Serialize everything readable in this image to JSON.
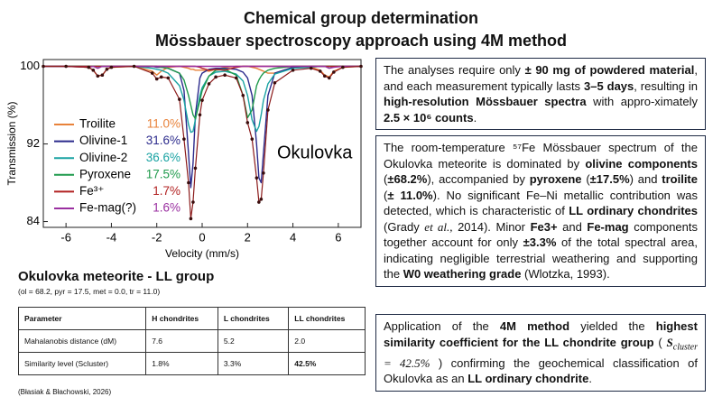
{
  "header": {
    "title_lines": [
      "Chemical group determination",
      "Mössbauer spectroscopy approach using 4M method"
    ]
  },
  "chart_data": {
    "type": "line",
    "x_label": "Velocity (mm/s)",
    "y_label": "Transmission (%)",
    "annotation": "Okulovka",
    "x": [
      -7,
      -6,
      -5,
      -4.8,
      -4.6,
      -4.4,
      -4.2,
      -4,
      -3,
      -2.2,
      -2,
      -1.8,
      -1.5,
      -1,
      -0.8,
      -0.6,
      -0.5,
      -0.4,
      -0.3,
      -0.1,
      0,
      0.3,
      0.6,
      1,
      1.5,
      1.8,
      2,
      2.2,
      2.4,
      2.5,
      2.6,
      2.7,
      2.9,
      3.2,
      4,
      4.8,
      5.2,
      5.4,
      5.6,
      5.8,
      6.2,
      7
    ],
    "xlim": [
      -7,
      7
    ],
    "xticks": [
      -6,
      -4,
      -2,
      0,
      2,
      4,
      6
    ],
    "ylim": [
      83.4,
      100.7
    ],
    "yticks": [
      84,
      92,
      100
    ],
    "measured": {
      "color": "#8b1a1a",
      "values": [
        100,
        100,
        99.9,
        99.6,
        99.0,
        99.1,
        99.7,
        99.9,
        100,
        99.3,
        98.7,
        98.9,
        98.8,
        96.6,
        92.5,
        88,
        84.3,
        86,
        89.5,
        95,
        96.5,
        98.2,
        98.9,
        99.1,
        98.8,
        97,
        94.2,
        92.5,
        88.5,
        86,
        86.3,
        89,
        95.5,
        98.3,
        99.6,
        99.8,
        99.5,
        99.0,
        98.8,
        99.4,
        99.9,
        100
      ]
    },
    "series": [
      {
        "name": "Troilite",
        "color": "#e8823a",
        "share": {
          "value": 11.0,
          "label": "11.0%"
        },
        "values": [
          100,
          100,
          99.9,
          99.6,
          99.0,
          99.1,
          99.7,
          99.9,
          100,
          99.5,
          99.1,
          99.5,
          99.9,
          100,
          99.9,
          99.8,
          99.7,
          99.7,
          99.6,
          99.6,
          99.6,
          99.5,
          99.7,
          99.9,
          100,
          100,
          100,
          99.9,
          99.8,
          99.7,
          99.6,
          99.5,
          99.3,
          99.3,
          99.9,
          99.9,
          99.6,
          99.1,
          98.9,
          99.5,
          99.9,
          100
        ]
      },
      {
        "name": "Olivine-1",
        "color": "#2b2a8c",
        "share": {
          "value": 31.6,
          "label": "31.6%"
        },
        "values": [
          100,
          100,
          100,
          100,
          100,
          100,
          100,
          100,
          100,
          100,
          99.9,
          99.9,
          99.8,
          99.3,
          97.5,
          91,
          87.5,
          90,
          95,
          98.8,
          99.3,
          99.7,
          99.8,
          99.8,
          99.7,
          99.4,
          98.8,
          97,
          92,
          88.5,
          88,
          91,
          97,
          99.3,
          99.9,
          100,
          100,
          100,
          100,
          100,
          100,
          100
        ]
      },
      {
        "name": "Olivine-2",
        "color": "#1aa3a3",
        "share": {
          "value": 36.6,
          "label": "36.6%"
        },
        "values": [
          100,
          100,
          100,
          100,
          100,
          100,
          100,
          100,
          100,
          99.8,
          99.7,
          99.6,
          99.3,
          98,
          96.5,
          94,
          93.2,
          93.3,
          94.5,
          97,
          97.8,
          99,
          99.4,
          99.5,
          99.2,
          98.5,
          97,
          94.5,
          93.3,
          93.8,
          95,
          96.5,
          98.2,
          99.2,
          99.8,
          99.9,
          100,
          100,
          100,
          100,
          100,
          100
        ]
      },
      {
        "name": "Pyroxene",
        "color": "#1f9a4c",
        "share": {
          "value": 17.5,
          "label": "17.5%"
        },
        "values": [
          100,
          100,
          100,
          100,
          100,
          100,
          100,
          100,
          100,
          100,
          100,
          99.9,
          99.8,
          99.3,
          98.6,
          97,
          96,
          95,
          94.6,
          96.5,
          97.5,
          99,
          99.6,
          99.7,
          99.1,
          97,
          94.7,
          95.5,
          98,
          98.6,
          99,
          99.3,
          99.6,
          99.8,
          100,
          100,
          100,
          100,
          100,
          100,
          100,
          100
        ]
      },
      {
        "name": "Fe³⁺",
        "color": "#b22222",
        "share": {
          "value": 1.7,
          "label": "1.7%"
        },
        "values": [
          100,
          100,
          100,
          100,
          100,
          100,
          100,
          100,
          100,
          100,
          100,
          100,
          100,
          100,
          100,
          100,
          100,
          100,
          100,
          99.9,
          99.8,
          99.6,
          99.7,
          99.6,
          99.9,
          100,
          100,
          100,
          100,
          100,
          100,
          100,
          100,
          100,
          100,
          100,
          100,
          100,
          100,
          100,
          100,
          100
        ]
      },
      {
        "name": "Fe-mag(?)",
        "color": "#9a2fa0",
        "share": {
          "value": 1.6,
          "label": "1.6%"
        },
        "values": [
          100,
          100,
          99.9,
          100,
          99.8,
          100,
          100,
          100,
          100,
          100,
          100,
          100,
          100,
          100,
          100,
          100,
          100,
          100,
          100,
          100,
          100,
          100,
          100,
          100,
          100,
          100,
          100,
          100,
          100,
          100,
          100,
          100,
          100,
          100,
          100,
          100,
          100,
          100,
          99.8,
          99.9,
          100,
          100
        ]
      }
    ]
  },
  "summary": {
    "title": "Okulovka meteorite - LL group",
    "subtitle": "(ol = 68.2, pyr = 17.5, met = 0.0, tr = 11.0)"
  },
  "table": {
    "header": [
      "Parameter",
      "H chondrites",
      "L chondrites",
      "LL chondrites"
    ],
    "rows": [
      [
        "Mahalanobis distance (dM)",
        "7.6",
        "5.2",
        "2.0"
      ],
      [
        "Similarity level (Scluster)",
        "1.8%",
        "3.3%",
        {
          "text": "42.5%",
          "bold": true
        }
      ]
    ]
  },
  "footnote": "(Błasiak & Błachowski, 2026)",
  "panels": [
    [
      {
        "text": "The analyses require only "
      },
      {
        "text": "± 90 mg of powdered material",
        "bold": true
      },
      {
        "text": ", and each measurement typically lasts "
      },
      {
        "text": "3–5 days",
        "bold": true
      },
      {
        "text": ", resulting in "
      },
      {
        "text": "high-resolution Mössbauer spectra",
        "bold": true
      },
      {
        "text": " with appro-ximately "
      },
      {
        "text": "2.5 × 10⁶ counts",
        "bold": true
      },
      {
        "text": "."
      }
    ],
    [
      {
        "text": "The room-temperature ⁵⁷Fe Mössbauer spectrum of the Okulovka meteorite is dominated by "
      },
      {
        "text": "olivine components",
        "bold": true
      },
      {
        "text": " ("
      },
      {
        "text": "±68.2%",
        "bold": true
      },
      {
        "text": "), accompanied by "
      },
      {
        "text": "pyroxene",
        "bold": true
      },
      {
        "text": " ("
      },
      {
        "text": "±17.5%",
        "bold": true
      },
      {
        "text": ") and "
      },
      {
        "text": "troilite",
        "bold": true
      },
      {
        "text": " ("
      },
      {
        "text": "± 11.0%",
        "bold": true
      },
      {
        "text": "). No significant Fe–Ni metallic contribution was detected, which is characteristic of "
      },
      {
        "text": "LL ordinary chondrites",
        "bold": true
      },
      {
        "text": " (Grady "
      },
      {
        "text": "et al.,",
        "italic": true
      },
      {
        "text": " 2014). Minor "
      },
      {
        "text": "Fe3+",
        "bold": true
      },
      {
        "text": " and "
      },
      {
        "text": "Fe-mag",
        "bold": true
      },
      {
        "text": " components together account for only "
      },
      {
        "text": "±3.3%",
        "bold": true
      },
      {
        "text": " of the total spectral area, indicating negligible terrestrial weathering and supporting the "
      },
      {
        "text": "W0 weathering grade",
        "bold": true
      },
      {
        "text": " (Wlotzka, 1993)."
      }
    ],
    [
      {
        "text": "Application of the "
      },
      {
        "text": "4M method",
        "bold": true
      },
      {
        "text": " yielded the "
      },
      {
        "text": "highest similarity coefficient for the LL chondrite group",
        "bold": true
      },
      {
        "text": " ( "
      },
      {
        "text": "S",
        "italic": true,
        "bold": true
      },
      {
        "text": "cluster",
        "sub": true,
        "italic": true
      },
      {
        "text": " = 42.5%",
        "italic": true
      },
      {
        "text": " ) confirming the geochemical classification of Okulovka as an "
      },
      {
        "text": "LL ordinary chondrite",
        "bold": true
      },
      {
        "text": "."
      }
    ]
  ]
}
